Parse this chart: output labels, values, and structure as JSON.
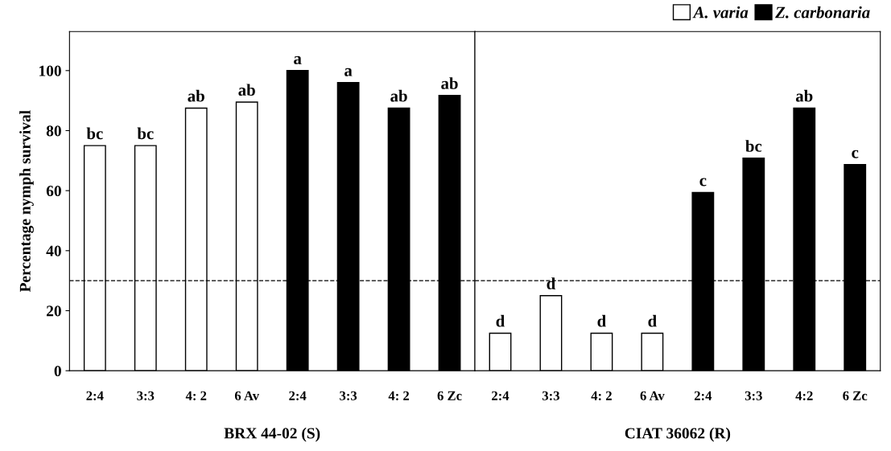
{
  "chart_data": [
    {
      "type": "bar",
      "xlabel": "BRX 44-02 (S)",
      "ylabel": "Percentage nymph survival",
      "categories": [
        "2:4",
        "3:3",
        "4: 2",
        "6 Av",
        "2:4",
        "3:3",
        "4: 2",
        "6 Zc"
      ],
      "series": [
        {
          "color": "#ffffff",
          "values": [
            75,
            75,
            87.5,
            89.5,
            null,
            null,
            null,
            null
          ],
          "value_labels": [
            "bc",
            "bc",
            "ab",
            "ab",
            null,
            null,
            null,
            null
          ]
        },
        {
          "color": "#000000",
          "values": [
            null,
            null,
            null,
            null,
            100,
            96,
            87.5,
            91.7
          ],
          "value_labels": [
            null,
            null,
            null,
            null,
            "a",
            "a",
            "ab",
            "ab"
          ]
        }
      ],
      "ylim": [
        0,
        113
      ],
      "yticks": [
        0,
        20,
        40,
        60,
        80,
        100
      ],
      "ref_lines": [
        {
          "axis": "y",
          "value": 30,
          "line_style": "dashed"
        }
      ],
      "grid": false,
      "legend": false
    },
    {
      "type": "bar",
      "xlabel": "CIAT 36062 (R)",
      "categories": [
        "2:4",
        "3:3",
        "4: 2",
        "6 Av",
        "2:4",
        "3:3",
        "4:2",
        "6 Zc"
      ],
      "series": [
        {
          "name": "A. varia",
          "color": "#ffffff",
          "values": [
            12.5,
            25,
            12.5,
            12.5,
            null,
            null,
            null,
            null
          ],
          "value_labels": [
            "d",
            "d",
            "d",
            "d",
            null,
            null,
            null,
            null
          ]
        },
        {
          "name": "Z. carbonaria",
          "color": "#000000",
          "values": [
            null,
            null,
            null,
            null,
            59.4,
            70.8,
            87.5,
            68.7
          ],
          "value_labels": [
            null,
            null,
            null,
            null,
            "c",
            "bc",
            "ab",
            "c"
          ]
        }
      ],
      "ylim": [
        0,
        113
      ],
      "yticks": [
        0,
        20,
        40,
        60,
        80,
        100
      ],
      "tick_labels": "x",
      "ref_lines": [
        {
          "axis": "y",
          "value": 30,
          "line_style": "dashed"
        }
      ],
      "grid": false,
      "legend": "top right"
    }
  ]
}
